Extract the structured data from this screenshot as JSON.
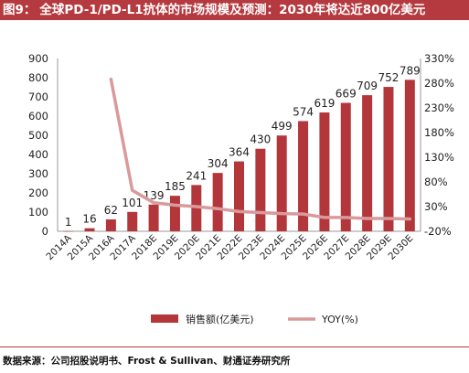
{
  "figure": {
    "label": "图9：",
    "title": "全球PD-1/PD-L1抗体的市场规模及预测：2030年将达近800亿美元",
    "source": "数据来源：公司招股说明书、Frost & Sullivan、财通证券研究所"
  },
  "colors": {
    "bar": "#b3363b",
    "line": "#d99a9c",
    "header": "#b53a3f"
  },
  "chart_data": {
    "type": "bar",
    "categories": [
      "2014A",
      "2015A",
      "2016A",
      "2017A",
      "2018E",
      "2019E",
      "2020E",
      "2021E",
      "2022E",
      "2023E",
      "2024E",
      "2025E",
      "2026E",
      "2027E",
      "2028E",
      "2029E",
      "2030E"
    ],
    "series": [
      {
        "name": "销售额(亿美元)",
        "type": "bar",
        "axis": "left",
        "values": [
          1,
          16,
          62,
          101,
          139,
          185,
          241,
          304,
          364,
          430,
          499,
          574,
          619,
          669,
          709,
          752,
          789
        ]
      },
      {
        "name": "YOY(%)",
        "type": "line",
        "axis": "right",
        "values": [
          null,
          null,
          288,
          63,
          38,
          33,
          30,
          26,
          20,
          18,
          16,
          15,
          8,
          8,
          6,
          6,
          5
        ]
      }
    ],
    "ylim": [
      0,
      900
    ],
    "yticks": [
      0,
      100,
      200,
      300,
      400,
      500,
      600,
      700,
      800,
      900
    ],
    "y2lim": [
      -20,
      330
    ],
    "y2ticks": [
      "-20%",
      "30%",
      "80%",
      "130%",
      "180%",
      "230%",
      "280%",
      "330%"
    ],
    "legend": "bottom",
    "grid": false
  }
}
